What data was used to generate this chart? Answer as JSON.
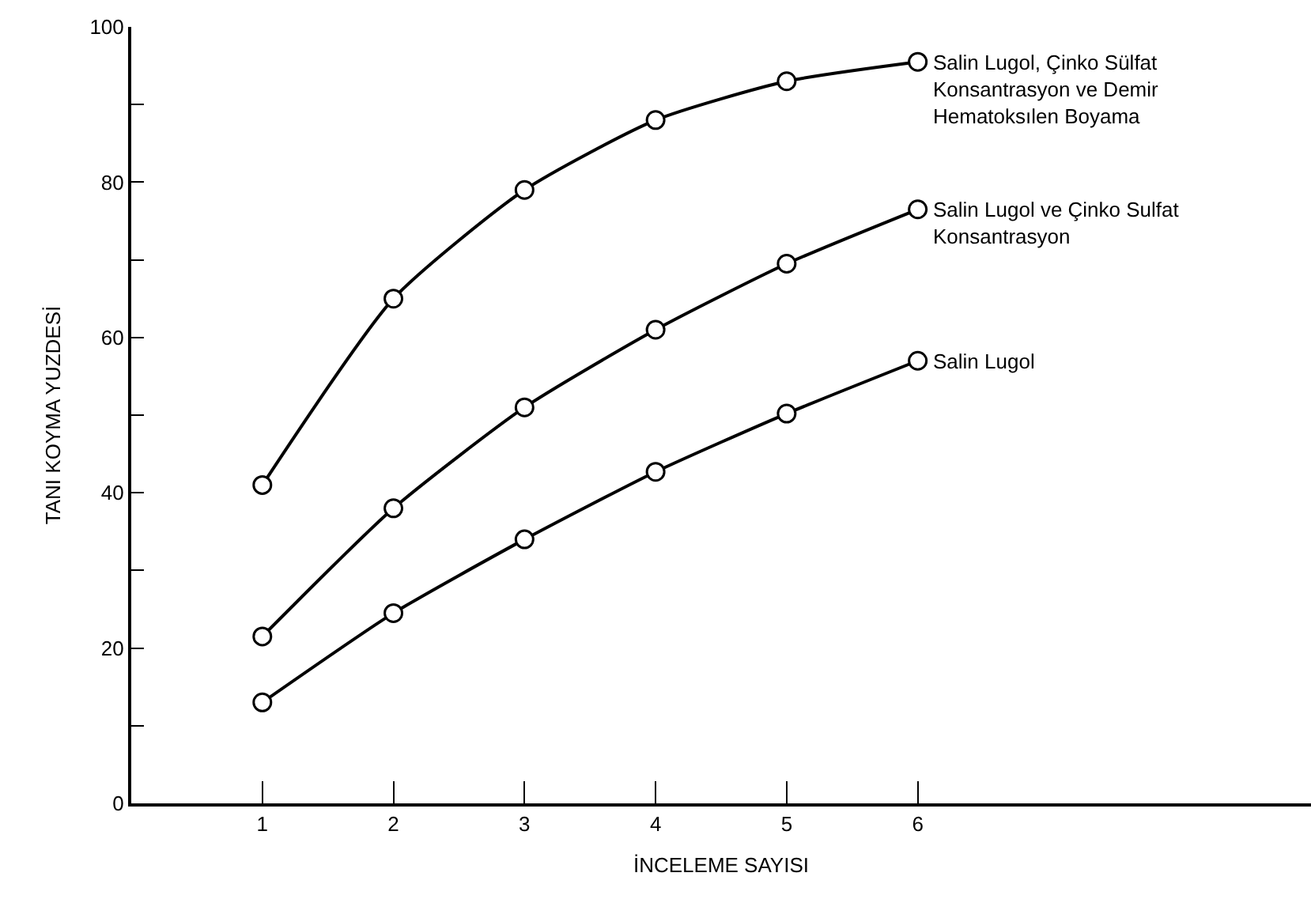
{
  "chart_data": {
    "type": "line",
    "xlabel": "İNCELEME SAYISI",
    "ylabel": "TANI KOYMA YUZDESİ",
    "x": [
      1,
      2,
      3,
      4,
      5,
      6
    ],
    "series": [
      {
        "name": "Salin Lugol, Çinko Sülfat Konsantrasyon ve Demir Hematoksılen Boyama",
        "color": "#000000",
        "values": [
          41,
          65,
          79,
          88,
          93,
          95.5
        ]
      },
      {
        "name": "Salin Lugol ve Çinko Sulfat Konsantrasyon",
        "color": "#000000",
        "values": [
          21.5,
          38,
          51,
          61,
          69.5,
          76.5
        ]
      },
      {
        "name": "Salin Lugol",
        "color": "#000000",
        "values": [
          13,
          24.5,
          34,
          42.7,
          50.2,
          57
        ]
      }
    ],
    "xlim": [
      0,
      9
    ],
    "xticks": [
      1,
      2,
      3,
      4,
      5,
      6
    ],
    "ylim": [
      0,
      100
    ],
    "yticks": [
      0,
      {
        "value": 10,
        "label": null
      },
      20,
      {
        "value": 30,
        "label": null
      },
      40,
      {
        "value": 50,
        "label": null
      },
      60,
      {
        "value": 70,
        "label": null
      },
      80,
      {
        "value": 90,
        "label": null
      },
      100
    ],
    "marker": "circle",
    "line_style": "solid",
    "legend": false
  }
}
